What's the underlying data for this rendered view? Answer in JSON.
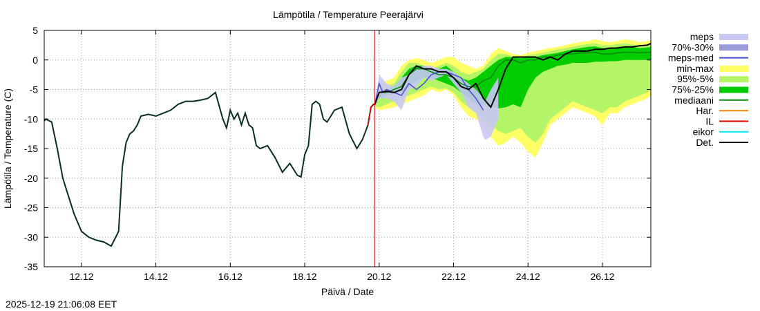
{
  "chart_data": {
    "type": "line",
    "title": "Lämpötila / Temperature   Peerajärvi",
    "xlabel": "Päivä / Date",
    "ylabel": "Lämpötila / Temperature (C)",
    "ylim": [
      -35,
      5
    ],
    "xlim_days": [
      0,
      16.3
    ],
    "yticks": [
      -35,
      -30,
      -25,
      -20,
      -15,
      -10,
      -5,
      0,
      5
    ],
    "xticks": [
      {
        "label": "12.12",
        "day": 1
      },
      {
        "label": "14.12",
        "day": 3
      },
      {
        "label": "16.12",
        "day": 5
      },
      {
        "label": "18.12",
        "day": 7
      },
      {
        "label": "20.12",
        "day": 9
      },
      {
        "label": "22.12",
        "day": 11
      },
      {
        "label": "24.12",
        "day": 13
      },
      {
        "label": "26.12",
        "day": 15
      }
    ],
    "now_day": 8.88,
    "grid": true,
    "legend": {
      "position": "right",
      "entries": [
        {
          "label": "meps",
          "color": "#c8c8f5",
          "style": "box"
        },
        {
          "label": "70%-30%",
          "color": "#9a9ad8",
          "style": "box"
        },
        {
          "label": "meps-med",
          "color": "#4a4ad0",
          "style": "line"
        },
        {
          "label": "min-max",
          "color": "#ffff66",
          "style": "box"
        },
        {
          "label": "95%-5%",
          "color": "#b3f566",
          "style": "box"
        },
        {
          "label": "75%-25%",
          "color": "#00cc00",
          "style": "box"
        },
        {
          "label": "mediaani",
          "color": "#008800",
          "style": "line"
        },
        {
          "label": "Har.",
          "color": "#ff8800",
          "style": "line"
        },
        {
          "label": "IL",
          "color": "#dd0000",
          "style": "line"
        },
        {
          "label": "eikor",
          "color": "#00e5ee",
          "style": "line"
        },
        {
          "label": "Det.",
          "color": "#000000",
          "style": "line"
        }
      ]
    },
    "observed": {
      "name": "observed",
      "x": [
        0,
        0.05,
        0.1,
        0.2,
        0.35,
        0.5,
        0.6,
        0.8,
        1.0,
        1.2,
        1.4,
        1.6,
        1.8,
        2.0,
        2.1,
        2.2,
        2.3,
        2.4,
        2.5,
        2.6,
        2.8,
        3.0,
        3.2,
        3.4,
        3.6,
        3.8,
        4.0,
        4.2,
        4.4,
        4.6,
        4.8,
        4.9,
        5.0,
        5.1,
        5.2,
        5.3,
        5.4,
        5.5,
        5.6,
        5.7,
        5.8,
        6.0,
        6.2,
        6.4,
        6.6,
        6.8,
        6.9,
        7.0,
        7.1,
        7.2,
        7.3,
        7.4,
        7.5,
        7.6,
        7.7,
        7.8,
        8.0,
        8.2,
        8.4,
        8.55,
        8.7,
        8.78,
        8.85,
        8.9
      ],
      "values": [
        -10.3,
        -10.0,
        -10.2,
        -10.5,
        -15,
        -20,
        -22,
        -26,
        -29,
        -30,
        -30.5,
        -30.8,
        -31.5,
        -29,
        -18,
        -14,
        -12.5,
        -12,
        -11,
        -9.5,
        -9.2,
        -9.5,
        -9.0,
        -8.5,
        -7.5,
        -7.0,
        -7.0,
        -6.8,
        -6.5,
        -5.5,
        -10,
        -11.5,
        -8.5,
        -10,
        -9,
        -11,
        -9,
        -11,
        -11.5,
        -14.5,
        -15,
        -14.5,
        -16.5,
        -19,
        -17.5,
        -19.5,
        -19.8,
        -16,
        -14.5,
        -7.5,
        -7.0,
        -7.5,
        -10.0,
        -10.5,
        -9.5,
        -8.5,
        -8.0,
        -12.5,
        -15.0,
        -13.5,
        -11.0,
        -8.0,
        -7.5,
        -7.5
      ]
    },
    "forecast_x": [
      8.88,
      9.0,
      9.2,
      9.4,
      9.6,
      9.8,
      10.0,
      10.2,
      10.4,
      10.6,
      10.8,
      11.0,
      11.2,
      11.4,
      11.6,
      11.8,
      12.0,
      12.2,
      12.4,
      12.6,
      12.8,
      13.0,
      13.2,
      13.4,
      13.6,
      13.8,
      14.0,
      14.2,
      14.4,
      14.6,
      14.8,
      15.0,
      15.2,
      15.4,
      15.6,
      15.8,
      16.0,
      16.2,
      16.3
    ],
    "series": [
      {
        "name": "min-max lower",
        "values": [
          -8.0,
          -8.5,
          -8.3,
          -8.0,
          -7.5,
          -7.0,
          -6.5,
          -6.0,
          -5.0,
          -5.5,
          -5.0,
          -6.0,
          -8.0,
          -9.5,
          -10.0,
          -11.0,
          -13.0,
          -14.5,
          -14.0,
          -13.0,
          -14.0,
          -15.5,
          -16.5,
          -14.0,
          -11.0,
          -10.0,
          -9.0,
          -8.0,
          -8.5,
          -9.0,
          -9.5,
          -11.0,
          -9.0,
          -9.0,
          -8.0,
          -7.5,
          -7.0,
          -6.5,
          -6.0
        ]
      },
      {
        "name": "min-max upper",
        "values": [
          -7.5,
          -4.0,
          -3.5,
          -3.0,
          -1.0,
          0.0,
          0.3,
          0.0,
          -0.5,
          0.0,
          0.5,
          0.5,
          -0.5,
          -1.0,
          -1.5,
          -1.0,
          1.0,
          2.0,
          1.5,
          1.0,
          0.8,
          1.2,
          1.5,
          1.8,
          2.0,
          2.2,
          2.5,
          2.8,
          3.0,
          3.2,
          3.5,
          3.2,
          3.0,
          3.2,
          3.5,
          3.3,
          3.0,
          3.2,
          3.3
        ]
      },
      {
        "name": "95%-5% lower",
        "values": [
          -7.8,
          -8.0,
          -7.5,
          -7.0,
          -6.5,
          -6.0,
          -5.5,
          -5.0,
          -4.5,
          -5.0,
          -4.8,
          -5.5,
          -7.0,
          -8.0,
          -9.0,
          -10.0,
          -11.0,
          -12.0,
          -12.5,
          -12.0,
          -11.5,
          -13.0,
          -14.0,
          -12.5,
          -10.0,
          -9.0,
          -8.0,
          -7.0,
          -7.5,
          -8.0,
          -8.5,
          -9.0,
          -8.0,
          -8.0,
          -7.0,
          -6.5,
          -6.0,
          -5.5,
          -5.0
        ]
      },
      {
        "name": "95%-5% upper",
        "values": [
          -7.6,
          -5.0,
          -4.5,
          -4.0,
          -2.0,
          -0.5,
          -0.5,
          -1.0,
          -1.5,
          -1.0,
          -0.5,
          -1.0,
          -2.0,
          -2.5,
          -2.0,
          -1.5,
          0.0,
          1.0,
          1.0,
          0.5,
          0.5,
          0.8,
          1.0,
          1.2,
          1.5,
          1.8,
          2.0,
          2.2,
          2.5,
          2.7,
          2.8,
          2.5,
          2.5,
          2.7,
          2.8,
          2.6,
          2.5,
          2.6,
          2.7
        ]
      },
      {
        "name": "75%-25% lower",
        "values": [
          -7.7,
          -6.5,
          -6.0,
          -5.8,
          -5.5,
          -4.5,
          -3.5,
          -3.0,
          -3.0,
          -3.5,
          -4.0,
          -4.5,
          -5.5,
          -6.5,
          -7.5,
          -7.5,
          -8.0,
          -8.2,
          -8.0,
          -7.5,
          -8.0,
          -5.0,
          -3.0,
          -2.0,
          -1.5,
          -1.0,
          -0.8,
          -0.5,
          -0.5,
          -0.5,
          -0.3,
          -0.3,
          -0.2,
          -0.2,
          0.0,
          0.0,
          0.0,
          0.0,
          0.0
        ]
      },
      {
        "name": "75%-25% upper",
        "values": [
          -7.6,
          -5.0,
          -5.0,
          -4.5,
          -3.0,
          -1.5,
          -1.0,
          -1.0,
          -1.5,
          -1.5,
          -1.0,
          -2.0,
          -3.0,
          -3.5,
          -3.0,
          -2.0,
          -1.0,
          0.0,
          0.5,
          0.5,
          0.3,
          0.5,
          0.5,
          0.8,
          1.0,
          1.2,
          1.5,
          1.8,
          2.0,
          2.2,
          2.3,
          2.0,
          2.0,
          2.2,
          2.3,
          2.2,
          2.0,
          2.1,
          2.2
        ]
      },
      {
        "name": "mediaani",
        "values": [
          -7.6,
          -5.5,
          -5.5,
          -5.0,
          -4.5,
          -2.5,
          -1.5,
          -1.5,
          -2.0,
          -2.5,
          -2.5,
          -3.0,
          -4.0,
          -4.5,
          -4.5,
          -3.5,
          -3.0,
          -1.0,
          0.0,
          0.0,
          -0.5,
          0.0,
          0.0,
          0.5,
          0.5,
          0.8,
          1.0,
          1.0,
          1.2,
          1.2,
          1.3,
          1.0,
          1.0,
          1.2,
          1.3,
          1.3,
          1.2,
          1.3,
          1.3
        ]
      },
      {
        "name": "Det.",
        "values": [
          -7.6,
          -5.5,
          -5.3,
          -5.5,
          -5.0,
          -2.5,
          -1.0,
          -1.5,
          -1.5,
          -2.0,
          -2.0,
          -3.0,
          -4.5,
          -5.0,
          -4.0,
          -6.5,
          -8.0,
          -5.0,
          -1.5,
          0.5,
          0.5,
          0.5,
          0.5,
          0.0,
          0.5,
          0.0,
          1.0,
          1.5,
          1.5,
          1.5,
          1.8,
          1.8,
          2.0,
          2.0,
          2.2,
          2.2,
          2.4,
          2.5,
          2.8
        ]
      },
      {
        "name": "meps lower",
        "x": [
          8.88,
          9.0,
          9.2,
          9.4,
          9.6,
          9.8,
          10.0,
          10.2,
          10.4,
          10.6,
          10.8,
          11.0,
          11.2,
          11.4,
          11.6,
          11.8,
          11.85,
          12.0,
          12.2
        ],
        "values": [
          -7.8,
          -6.5,
          -6.5,
          -7.0,
          -8.5,
          -5.0,
          -4.5,
          -3.0,
          -3.5,
          -3.0,
          -2.5,
          -4.0,
          -5.5,
          -8.0,
          -9.0,
          -13.0,
          -13.5,
          -13.0,
          -10.0
        ]
      },
      {
        "name": "meps upper",
        "x": [
          8.88,
          9.0,
          9.2,
          9.4,
          9.6,
          9.8,
          10.0,
          10.2,
          10.4,
          10.6,
          10.8,
          11.0,
          11.2,
          11.4,
          11.6,
          11.8,
          11.85,
          12.0,
          12.2
        ],
        "values": [
          -7.6,
          -2.5,
          -4.0,
          -4.5,
          -3.0,
          -2.5,
          -1.5,
          -1.0,
          -1.0,
          -1.5,
          -1.5,
          -2.0,
          -3.0,
          -4.0,
          -5.0,
          -6.5,
          -7.0,
          -5.0,
          -3.0
        ]
      },
      {
        "name": "meps-med",
        "x": [
          8.88,
          9.0,
          9.1,
          9.2,
          9.4,
          9.6,
          9.8,
          10.0,
          10.2,
          10.4,
          10.6,
          10.8,
          11.0,
          11.2,
          11.4,
          11.6,
          11.8
        ],
        "values": [
          -7.6,
          -4.0,
          -5.5,
          -5.0,
          -5.5,
          -6.0,
          -4.0,
          -5.0,
          -4.0,
          -2.5,
          -2.0,
          -2.0,
          -2.5,
          -3.0,
          -5.0,
          -6.5,
          -8.5
        ]
      }
    ],
    "timestamp": "2025-12-19 21:06:08 EET"
  }
}
